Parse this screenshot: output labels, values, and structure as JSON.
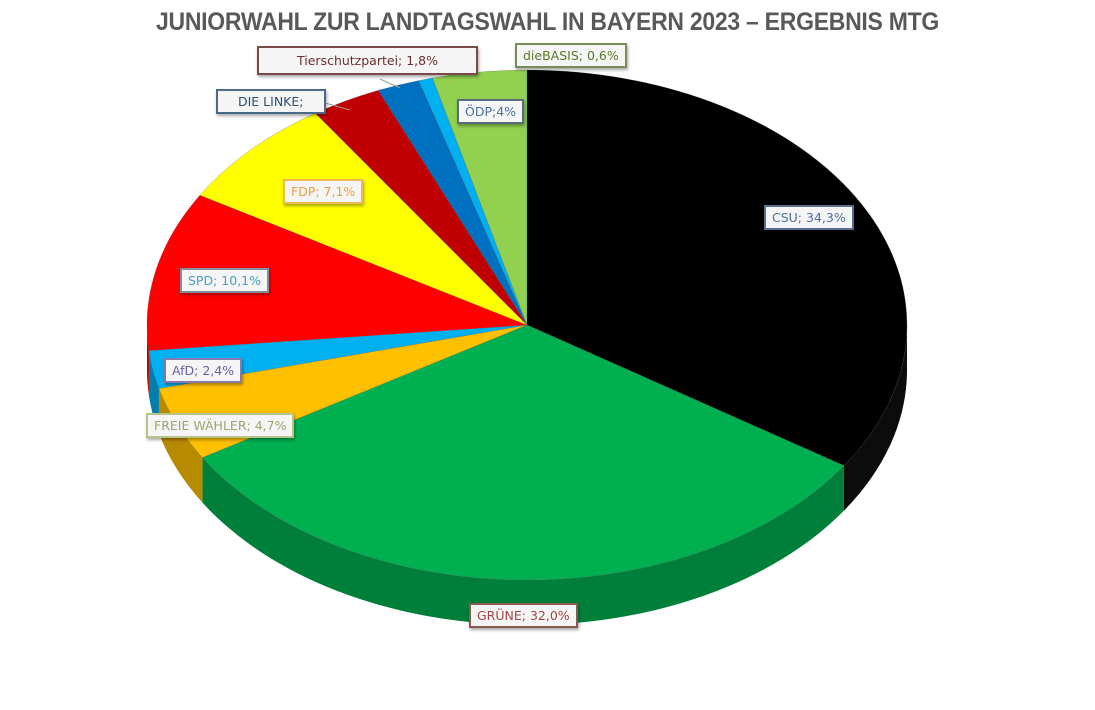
{
  "chart_data": {
    "type": "pie",
    "title": "JUNIORWAHL ZUR LANDTAGSWAHL IN BAYERN 2023 – ERGEBNIS MTG",
    "style": "3d-pie",
    "start_angle": "12 o'clock, clockwise",
    "slices": [
      {
        "name": "CSU",
        "label": "CSU; 34,3%",
        "value": 34.3,
        "color": "#000000",
        "label_color": "#4f6fa0",
        "label_border": "#5a6d8f"
      },
      {
        "name": "GRÜNE",
        "label": "GRÜNE; 32,0%",
        "value": 32.0,
        "color": "#00b050",
        "label_color": "#a04848",
        "label_border": "#8a5a52"
      },
      {
        "name": "FREIE WÄHLER",
        "label": "FREIE WÄHLER; 4,7%",
        "value": 4.7,
        "color": "#ffc000",
        "label_color": "#9aa870",
        "label_border": "#b8c48a"
      },
      {
        "name": "AfD",
        "label": "AfD; 2,4%",
        "value": 2.4,
        "color": "#00b0f0",
        "label_color": "#7060a0",
        "label_border": "#8878b0"
      },
      {
        "name": "SPD",
        "label": "SPD; 10,1%",
        "value": 10.1,
        "color": "#ff0000",
        "label_color": "#4aa0c0",
        "label_border": "#7f8f9f"
      },
      {
        "name": "FDP",
        "label": "FDP; 7,1%",
        "value": 7.1,
        "color": "#ffff00",
        "label_color": "#e8a040",
        "label_border": "#f0b850"
      },
      {
        "name": "DIE LINKE",
        "label": "DIE LINKE;",
        "value": 3.0,
        "color": "#c00000",
        "label_color": "#2f4f70",
        "label_border": "#4a6a8a"
      },
      {
        "name": "Tierschutzpartei",
        "label": "Tierschutzpartei; 1,8%",
        "value": 1.8,
        "color": "#0070c0",
        "label_color": "#6a3030",
        "label_border": "#7a4a4a"
      },
      {
        "name": "dieBASIS",
        "label": "dieBASIS; 0,6%",
        "value": 0.6,
        "color": "#00b0f0",
        "label_color": "#5a7a2a",
        "label_border": "#7a8a5a"
      },
      {
        "name": "ÖDP",
        "label": "ÖDP;4%",
        "value": 4.0,
        "color": "#92d050",
        "label_color": "#4f6fa0",
        "label_border": "#5a6d7a"
      }
    ],
    "legend": "none (data labels)"
  }
}
